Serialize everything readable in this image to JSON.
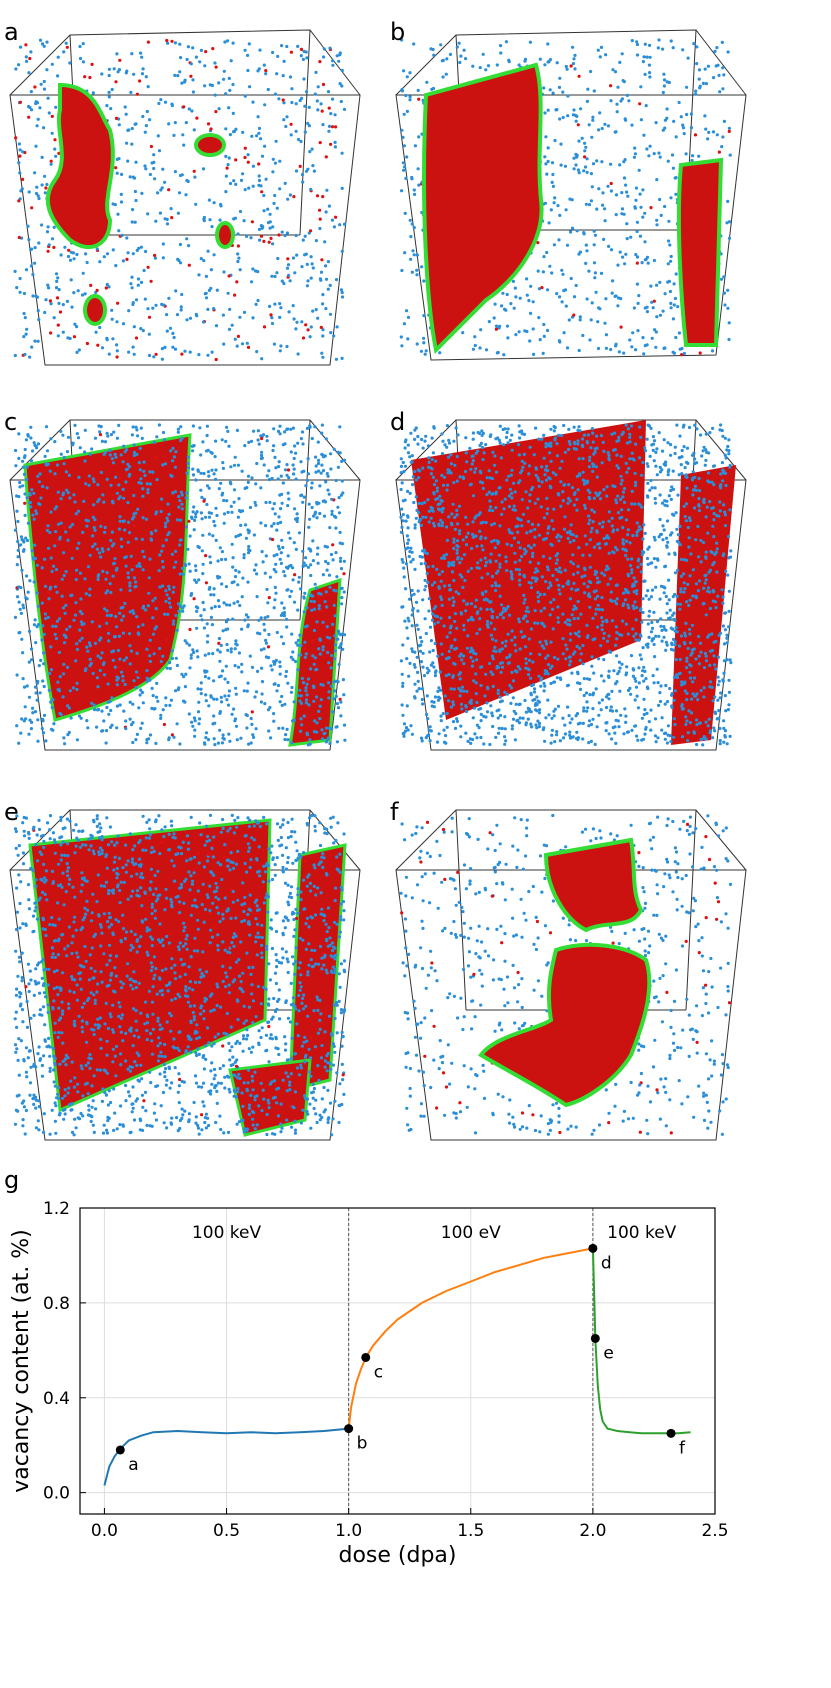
{
  "panels": [
    {
      "letter": "a"
    },
    {
      "letter": "b"
    },
    {
      "letter": "c"
    },
    {
      "letter": "d"
    },
    {
      "letter": "e"
    },
    {
      "letter": "f"
    }
  ],
  "chart_data": {
    "type": "line",
    "panel_letter": "g",
    "xlabel": "dose (dpa)",
    "ylabel": "vacancy content (at. %)",
    "xlim": [
      -0.1,
      2.5
    ],
    "ylim": [
      -0.09,
      1.2
    ],
    "xticks": [
      0.0,
      0.5,
      1.0,
      1.5,
      2.0,
      2.5
    ],
    "xtick_labels": [
      "0.0",
      "0.5",
      "1.0",
      "1.5",
      "2.0",
      "2.5"
    ],
    "yticks": [
      0.0,
      0.4,
      0.8,
      1.2
    ],
    "ytick_labels": [
      "0.0",
      "0.4",
      "0.8",
      "1.2"
    ],
    "grid": true,
    "vertical_dividers": [
      1.0,
      2.0
    ],
    "region_labels": [
      {
        "x": 0.5,
        "text": "100 keV"
      },
      {
        "x": 1.5,
        "text": "100 eV"
      },
      {
        "x": 2.2,
        "text": "100 keV"
      }
    ],
    "series": [
      {
        "color": "#1f77b4",
        "x": [
          0.0,
          0.02,
          0.04,
          0.06,
          0.08,
          0.1,
          0.15,
          0.2,
          0.3,
          0.4,
          0.5,
          0.6,
          0.7,
          0.8,
          0.9,
          1.0
        ],
        "y": [
          0.03,
          0.11,
          0.15,
          0.18,
          0.2,
          0.22,
          0.24,
          0.255,
          0.26,
          0.255,
          0.25,
          0.255,
          0.25,
          0.255,
          0.26,
          0.27
        ]
      },
      {
        "color": "#ff7f0e",
        "x": [
          1.0,
          1.01,
          1.03,
          1.05,
          1.07,
          1.1,
          1.15,
          1.2,
          1.3,
          1.4,
          1.5,
          1.6,
          1.7,
          1.8,
          1.9,
          2.0
        ],
        "y": [
          0.27,
          0.36,
          0.46,
          0.52,
          0.57,
          0.62,
          0.68,
          0.73,
          0.8,
          0.85,
          0.89,
          0.93,
          0.96,
          0.99,
          1.01,
          1.03
        ]
      },
      {
        "color": "#2ca02c",
        "x": [
          2.0,
          2.005,
          2.01,
          2.02,
          2.03,
          2.04,
          2.06,
          2.08,
          2.1,
          2.15,
          2.2,
          2.25,
          2.3,
          2.35,
          2.4
        ],
        "y": [
          1.03,
          0.85,
          0.65,
          0.45,
          0.35,
          0.3,
          0.27,
          0.265,
          0.26,
          0.255,
          0.25,
          0.25,
          0.25,
          0.25,
          0.255
        ]
      }
    ],
    "points": [
      {
        "label": "a",
        "x": 0.065,
        "y": 0.18
      },
      {
        "label": "b",
        "x": 1.0,
        "y": 0.27
      },
      {
        "label": "c",
        "x": 1.07,
        "y": 0.57
      },
      {
        "label": "d",
        "x": 2.0,
        "y": 1.03
      },
      {
        "label": "e",
        "x": 2.01,
        "y": 0.65
      },
      {
        "label": "f",
        "x": 2.32,
        "y": 0.25
      }
    ]
  }
}
